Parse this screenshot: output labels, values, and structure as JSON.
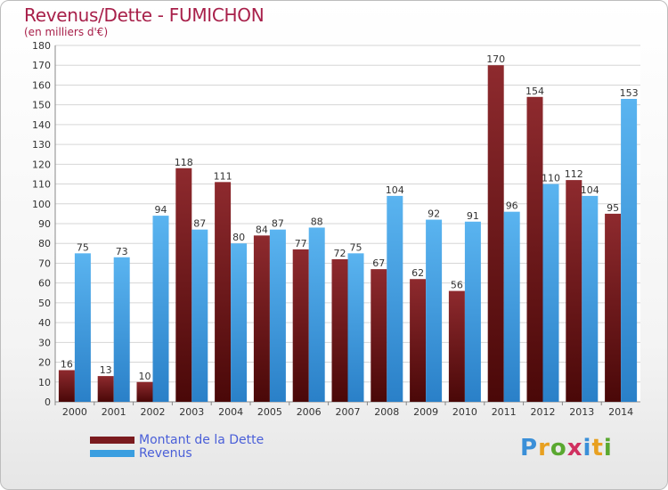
{
  "header": {
    "title": "Revenus/Dette - FUMICHON",
    "subtitle": "(en milliers d'€)"
  },
  "colors": {
    "dette": "#7a1a1e",
    "revenus": "#3a9ee0",
    "title": "#a8204a",
    "legend_text": "#4a5fd8"
  },
  "chart_data": {
    "type": "bar",
    "title": "Revenus/Dette - FUMICHON",
    "subtitle": "(en milliers d'€)",
    "categories": [
      "2000",
      "2001",
      "2002",
      "2003",
      "2004",
      "2005",
      "2006",
      "2007",
      "2008",
      "2009",
      "2010",
      "2011",
      "2012",
      "2013",
      "2014"
    ],
    "series": [
      {
        "name": "Montant de la Dette",
        "values": [
          16,
          13,
          10,
          118,
          111,
          84,
          77,
          72,
          67,
          62,
          56,
          170,
          154,
          112,
          95
        ]
      },
      {
        "name": "Revenus",
        "values": [
          75,
          73,
          94,
          87,
          80,
          87,
          88,
          75,
          104,
          92,
          91,
          96,
          110,
          104,
          153
        ]
      }
    ],
    "ylim": [
      0,
      180
    ],
    "ytick_step": 10,
    "grid": true,
    "legend": "bottom-left"
  },
  "legend": {
    "items": [
      {
        "label": "Montant de la Dette"
      },
      {
        "label": "Revenus"
      }
    ]
  },
  "logo": {
    "text": "Proxiti"
  }
}
